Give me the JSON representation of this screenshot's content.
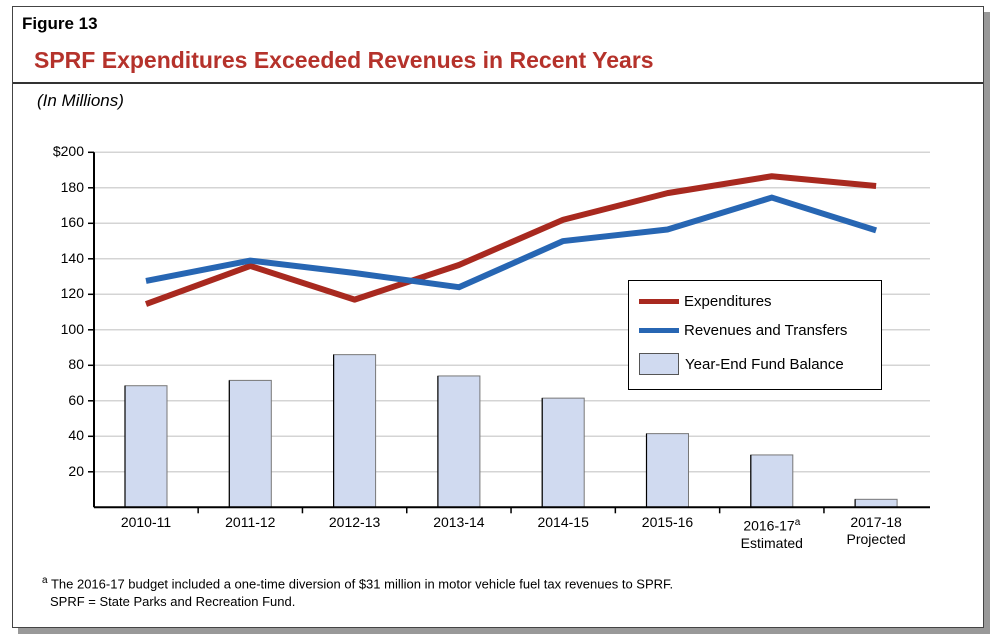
{
  "figure_label": "Figure 13",
  "title": "SPRF Expenditures Exceeded Revenues in Recent Years",
  "subtitle": "(In Millions)",
  "footnotes": {
    "marker": "a",
    "note": "The 2016-17 budget included a one-time diversion of $31 million in motor vehicle fuel tax revenues to SPRF.",
    "abbrev": "SPRF = State Parks and Recreation Fund."
  },
  "chart_data": {
    "type": "bar+line",
    "categories": [
      "2010-11",
      "2011-12",
      "2012-13",
      "2013-14",
      "2014-15",
      "2015-16",
      "2016-17",
      "2017-18"
    ],
    "category_sublabels": [
      "",
      "",
      "",
      "",
      "",
      "",
      "Estimated",
      "Projected"
    ],
    "category_superscripts": [
      "",
      "",
      "",
      "",
      "",
      "",
      "a",
      ""
    ],
    "ylim": [
      0,
      200
    ],
    "yticks": [
      20,
      40,
      60,
      80,
      100,
      120,
      140,
      160,
      180,
      200
    ],
    "ytick_labels": [
      "20",
      "40",
      "60",
      "80",
      "100",
      "120",
      "140",
      "160",
      "180",
      "$200"
    ],
    "grid": true,
    "legend_position": "right-middle",
    "series": [
      {
        "name": "Expenditures",
        "type": "line",
        "color": "#a8291f",
        "values": [
          114.5,
          136,
          117,
          136.5,
          162,
          177,
          186.5,
          181
        ]
      },
      {
        "name": "Revenues and Transfers",
        "type": "line",
        "color": "#2766b3",
        "values": [
          127.5,
          139,
          132,
          124,
          150,
          156.5,
          174.5,
          156
        ]
      },
      {
        "name": "Year-End Fund Balance",
        "type": "bar",
        "color": "#d0daf0",
        "values": [
          68.5,
          71.5,
          86,
          74,
          61.5,
          41.5,
          29.5,
          4.5
        ]
      }
    ]
  }
}
